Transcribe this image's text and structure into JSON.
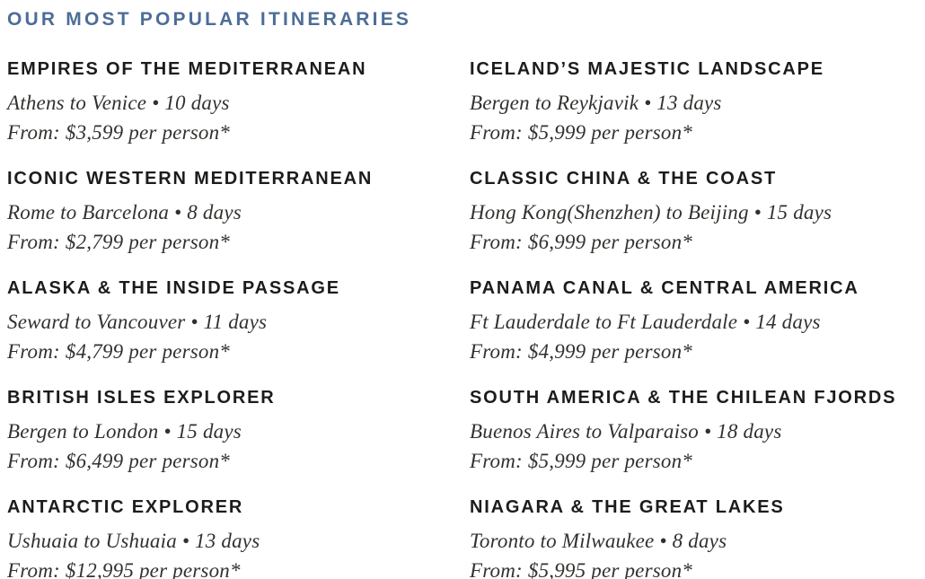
{
  "page": {
    "heading": "OUR MOST POPULAR ITINERARIES",
    "colors": {
      "heading_blue": "#4d6d97",
      "title_black": "#1d1c1b",
      "detail_gray": "#33312e",
      "background": "#ffffff"
    }
  },
  "itineraries": {
    "left": [
      {
        "title": "EMPIRES OF THE MEDITERRANEAN",
        "route": "Athens to Venice • 10 days",
        "price": "From: $3,599 per person*"
      },
      {
        "title": "ICONIC WESTERN MEDITERRANEAN",
        "route": "Rome to Barcelona • 8 days",
        "price": "From: $2,799 per person*"
      },
      {
        "title": "ALASKA & THE INSIDE PASSAGE",
        "route": "Seward to Vancouver • 11 days",
        "price": "From: $4,799 per person*"
      },
      {
        "title": "BRITISH ISLES EXPLORER",
        "route": "Bergen to London • 15 days",
        "price": "From: $6,499 per person*"
      },
      {
        "title": "ANTARCTIC EXPLORER",
        "route": "Ushuaia to Ushuaia • 13 days",
        "price": "From: $12,995 per person*"
      }
    ],
    "right": [
      {
        "title": "ICELAND’S MAJESTIC LANDSCAPE",
        "route": "Bergen to Reykjavik • 13 days",
        "price": "From: $5,999 per person*"
      },
      {
        "title": "CLASSIC CHINA & THE COAST",
        "route": "Hong Kong(Shenzhen) to Beijing • 15 days",
        "price": "From: $6,999 per person*"
      },
      {
        "title": "PANAMA CANAL & CENTRAL AMERICA",
        "route": "Ft Lauderdale to Ft Lauderdale • 14 days",
        "price": "From: $4,999 per person*"
      },
      {
        "title": "SOUTH AMERICA & THE CHILEAN FJORDS",
        "route": "Buenos Aires to Valparaiso • 18 days",
        "price": "From: $5,999 per person*"
      },
      {
        "title": "NIAGARA & THE GREAT LAKES",
        "route": "Toronto to Milwaukee • 8 days",
        "price": "From: $5,995 per person*"
      }
    ]
  }
}
